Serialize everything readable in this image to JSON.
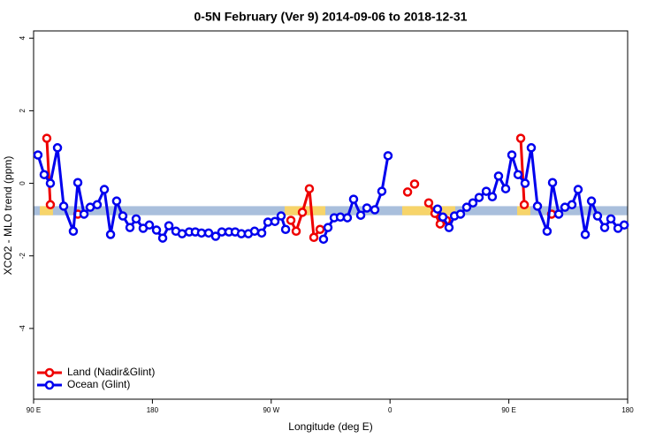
{
  "chart_data": {
    "type": "line",
    "title": "0-5N February (Ver 9)   2014-09-06 to 2018-12-31",
    "xlabel": "Longitude (deg E)",
    "ylabel": "XCO2 - MLO trend (ppm)",
    "xlim": [
      90,
      540
    ],
    "ylim": [
      -5.95,
      4.2
    ],
    "xticks": [
      {
        "value": 90,
        "label": "90 E"
      },
      180,
      {
        "value": 270,
        "label": "90 W"
      },
      {
        "value": 360,
        "label": "0"
      },
      {
        "value": 450,
        "label": "90 E"
      },
      {
        "value": 540,
        "label": "180"
      }
    ],
    "yticks": [
      -4,
      -2,
      0,
      2,
      4
    ],
    "legend": "bottom-left",
    "band": {
      "range": [
        -0.88,
        -0.63
      ],
      "color": "#a9bfdc",
      "land_color": "#f7d46a",
      "land": [
        [
          94.7,
          104.7
        ],
        [
          280.2,
          311
        ],
        [
          369.2,
          409.4
        ],
        [
          456.3,
          466.3
        ]
      ]
    },
    "series": [
      {
        "name": "Land (Nadir&Glint)",
        "color": "#ee0000",
        "x": [
          100.0,
          102.7,
          null,
          123.5,
          null,
          284.9,
          288.9,
          293.6,
          298.9,
          302.3,
          307.0,
          null,
          373.3,
          null,
          378.6,
          null,
          389.3,
          394.0,
          398.0,
          402.7,
          null,
          459.0,
          461.7,
          null,
          482.4
        ],
        "values": [
          1.24,
          -0.59,
          null,
          -0.85,
          null,
          -1.02,
          -1.32,
          -0.8,
          -0.15,
          -1.49,
          -1.27,
          null,
          -0.24,
          null,
          -0.02,
          null,
          -0.54,
          -0.83,
          -1.12,
          -1.02,
          null,
          1.24,
          -0.59,
          null,
          -0.85
        ]
      },
      {
        "name": "Ocean (Glint)",
        "color": "#0000ee",
        "x": [
          93.3,
          98.0,
          102.7,
          108.1,
          112.8,
          120.1,
          123.5,
          128.2,
          132.9,
          138.2,
          143.6,
          148.3,
          152.9,
          157.6,
          163.0,
          167.7,
          173.0,
          177.7,
          183.1,
          187.8,
          192.5,
          197.8,
          202.5,
          207.9,
          212.5,
          217.2,
          222.6,
          227.9,
          232.6,
          238.0,
          242.7,
          247.4,
          252.7,
          257.4,
          262.8,
          267.5,
          272.8,
          277.5,
          280.9,
          null,
          309.6,
          313.0,
          317.7,
          322.4,
          327.7,
          332.4,
          337.8,
          342.5,
          348.5,
          353.8,
          358.5,
          null,
          396.0,
          400.0,
          404.7,
          408.8,
          413.4,
          418.1,
          422.8,
          427.5,
          432.9,
          437.5,
          442.2,
          447.6,
          452.3,
          457.0,
          462.3,
          467.0,
          471.7,
          479.0,
          483.1,
          487.8,
          492.5,
          497.8,
          502.5,
          507.9,
          512.6,
          517.2,
          522.6,
          527.3,
          532.7,
          537.4
        ],
        "values": [
          0.78,
          0.24,
          0.0,
          0.98,
          -0.63,
          -1.32,
          0.02,
          -0.85,
          -0.66,
          -0.59,
          -0.17,
          -1.41,
          -0.49,
          -0.9,
          -1.22,
          -0.98,
          -1.24,
          -1.15,
          -1.29,
          -1.51,
          -1.17,
          -1.32,
          -1.39,
          -1.34,
          -1.34,
          -1.37,
          -1.37,
          -1.46,
          -1.34,
          -1.34,
          -1.34,
          -1.39,
          -1.39,
          -1.32,
          -1.37,
          -1.07,
          -1.05,
          -0.9,
          -1.27,
          null,
          -1.54,
          -1.22,
          -0.95,
          -0.93,
          -0.95,
          -0.44,
          -0.88,
          -0.68,
          -0.73,
          -0.22,
          0.76,
          null,
          -0.71,
          -0.93,
          -1.22,
          -0.9,
          -0.85,
          -0.66,
          -0.54,
          -0.39,
          -0.22,
          -0.37,
          0.2,
          -0.15,
          0.78,
          0.24,
          0.0,
          0.98,
          -0.63,
          -1.32,
          0.02,
          -0.85,
          -0.66,
          -0.59,
          -0.17,
          -1.41,
          -0.49,
          -0.9,
          -1.22,
          -0.98,
          -1.24,
          -1.15
        ]
      }
    ]
  }
}
